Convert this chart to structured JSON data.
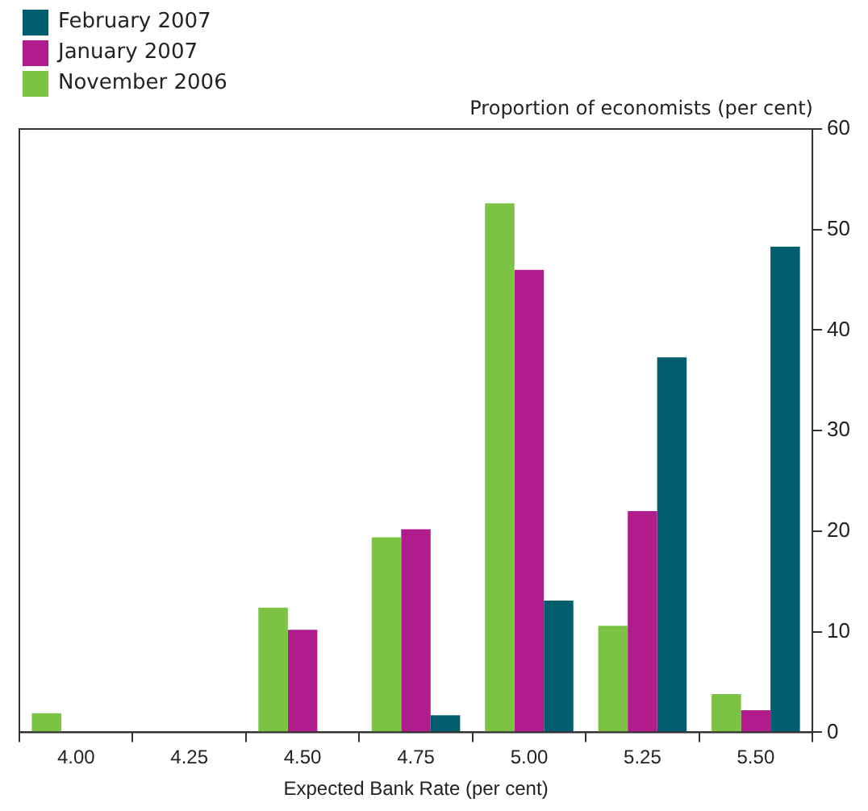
{
  "chart_data": {
    "type": "bar",
    "xlabel": "Expected Bank Rate (per cent)",
    "ylabel": "Proportion of economists (per cent)",
    "categories": [
      "4.00",
      "4.25",
      "4.50",
      "4.75",
      "5.00",
      "5.25",
      "5.50"
    ],
    "series": [
      {
        "name": "November 2006",
        "color": "#7cc243",
        "values": [
          1.9,
          0,
          12.4,
          19.4,
          52.6,
          10.6,
          3.8
        ]
      },
      {
        "name": "January 2007",
        "color": "#b01c8c",
        "values": [
          0,
          0,
          10.2,
          20.2,
          46.0,
          22.0,
          2.2
        ]
      },
      {
        "name": "February 2007",
        "color": "#005e6e",
        "values": [
          0,
          0,
          0,
          1.7,
          13.1,
          37.3,
          48.3
        ]
      }
    ],
    "ylim": [
      0,
      60
    ],
    "yticks": [
      0,
      10,
      20,
      30,
      40,
      50,
      60
    ],
    "grid": false,
    "legend": "top left"
  }
}
